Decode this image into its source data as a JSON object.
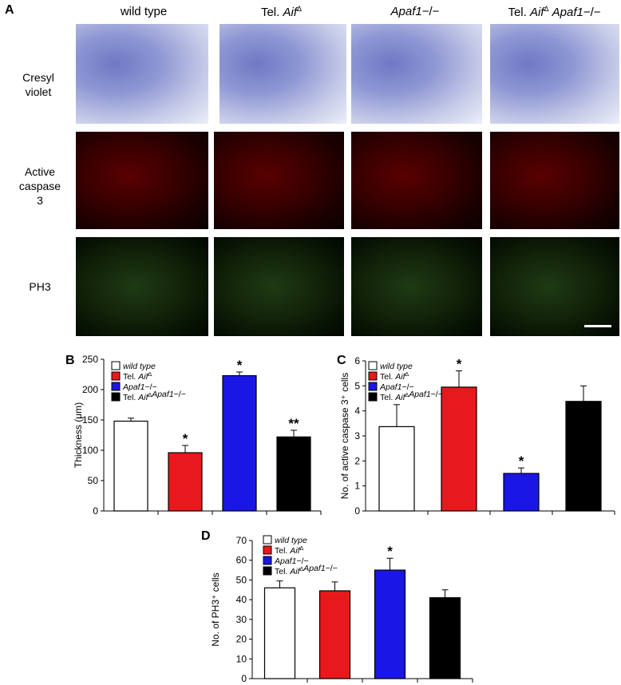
{
  "panel_a": {
    "letter": "A",
    "columns": [
      {
        "prefix": "",
        "italic": "wild type",
        "sup": "",
        "italic2": "",
        "suffix": ""
      },
      {
        "prefix": "Tel. ",
        "italic": "Aif",
        "sup": "Δ",
        "italic2": "",
        "suffix": ""
      },
      {
        "prefix": "",
        "italic": "Apaf1",
        "sup": "",
        "italic2": "",
        "suffix": "−/−"
      },
      {
        "prefix": "Tel. ",
        "italic": "Aif",
        "sup": "Δ",
        "italic2": " Apaf1",
        "suffix": "−/−"
      }
    ],
    "rows": [
      "Cresyl violet",
      "Active caspase 3",
      "PH3"
    ]
  },
  "legend": [
    {
      "prefix": "",
      "label": "wild type",
      "sup": "",
      "label2": "",
      "suffix": "",
      "color": "#ffffff"
    },
    {
      "prefix": "Tel. ",
      "label": "Aif",
      "sup": "Δ",
      "label2": "",
      "suffix": "",
      "color": "#e8191c"
    },
    {
      "prefix": "",
      "label": "Apaf1",
      "sup": "",
      "label2": "",
      "suffix": "−/−",
      "color": "#1a17e6"
    },
    {
      "prefix": "Tel. ",
      "label": "Aif",
      "sup": "Δ",
      "label2": "Apaf1",
      "suffix": "−/−",
      "color": "#000000"
    }
  ],
  "chart_data": [
    {
      "panel": "B",
      "type": "bar",
      "ylabel": "Thickness (μm)",
      "ylim": [
        0,
        250
      ],
      "yticks": [
        0,
        50,
        100,
        150,
        200,
        250
      ],
      "values": [
        148,
        96,
        223,
        122
      ],
      "errors": [
        5,
        12,
        6,
        11
      ],
      "annotations": [
        "",
        "*",
        "*",
        "**"
      ],
      "colors": [
        "#ffffff",
        "#e8191c",
        "#1a17e6",
        "#000000"
      ]
    },
    {
      "panel": "C",
      "type": "bar",
      "ylabel": "No. of active caspase 3⁺ cells",
      "ylim": [
        0,
        6
      ],
      "yticks": [
        0,
        1,
        2,
        3,
        4,
        5,
        6
      ],
      "values": [
        3.37,
        4.95,
        1.5,
        4.38
      ],
      "errors": [
        0.88,
        0.65,
        0.22,
        0.62
      ],
      "annotations": [
        "",
        "*",
        "*",
        ""
      ],
      "colors": [
        "#ffffff",
        "#e8191c",
        "#1a17e6",
        "#000000"
      ]
    },
    {
      "panel": "D",
      "type": "bar",
      "ylabel": "No. of PH3⁺ cells",
      "ylim": [
        0,
        70
      ],
      "yticks": [
        0,
        10,
        20,
        30,
        40,
        50,
        60,
        70
      ],
      "values": [
        46,
        44.5,
        55,
        41
      ],
      "errors": [
        3.5,
        4.5,
        6,
        4
      ],
      "annotations": [
        "",
        "",
        "*",
        ""
      ],
      "colors": [
        "#ffffff",
        "#e8191c",
        "#1a17e6",
        "#000000"
      ]
    }
  ]
}
